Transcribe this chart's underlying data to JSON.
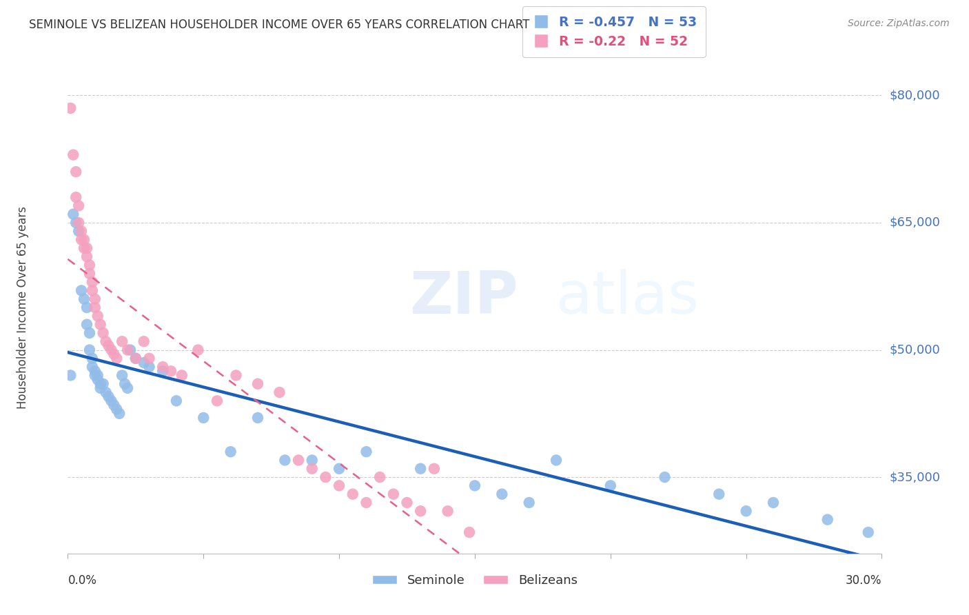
{
  "title": "SEMINOLE VS BELIZEAN HOUSEHOLDER INCOME OVER 65 YEARS CORRELATION CHART",
  "source": "Source: ZipAtlas.com",
  "ylabel": "Householder Income Over 65 years",
  "yticks": [
    35000,
    50000,
    65000,
    80000
  ],
  "ytick_labels": [
    "$35,000",
    "$50,000",
    "$65,000",
    "$80,000"
  ],
  "xlim": [
    0.0,
    0.3
  ],
  "ylim": [
    26000,
    84000
  ],
  "seminole_color": "#92bce8",
  "belizean_color": "#f4a0be",
  "seminole_line_color": "#1a5eb8",
  "belizean_line_color": "#e8608a",
  "watermark_text": "ZIPatlas",
  "seminole_R": -0.457,
  "seminole_N": 53,
  "belizean_R": -0.22,
  "belizean_N": 52,
  "seminole_x": [
    0.001,
    0.002,
    0.003,
    0.004,
    0.005,
    0.006,
    0.007,
    0.007,
    0.008,
    0.008,
    0.009,
    0.009,
    0.01,
    0.01,
    0.011,
    0.011,
    0.012,
    0.012,
    0.013,
    0.014,
    0.015,
    0.016,
    0.017,
    0.018,
    0.019,
    0.02,
    0.021,
    0.022,
    0.023,
    0.025,
    0.028,
    0.03,
    0.035,
    0.04,
    0.05,
    0.06,
    0.07,
    0.08,
    0.09,
    0.1,
    0.11,
    0.13,
    0.15,
    0.16,
    0.17,
    0.18,
    0.2,
    0.22,
    0.24,
    0.25,
    0.26,
    0.28,
    0.295
  ],
  "seminole_y": [
    47000,
    66000,
    65000,
    64000,
    57000,
    56000,
    55000,
    53000,
    52000,
    50000,
    49000,
    48000,
    47500,
    47000,
    47000,
    46500,
    46000,
    45500,
    46000,
    45000,
    44500,
    44000,
    43500,
    43000,
    42500,
    47000,
    46000,
    45500,
    50000,
    49000,
    48500,
    48000,
    47500,
    44000,
    42000,
    38000,
    42000,
    37000,
    37000,
    36000,
    38000,
    36000,
    34000,
    33000,
    32000,
    37000,
    34000,
    35000,
    33000,
    31000,
    32000,
    30000,
    28500
  ],
  "belizean_x": [
    0.001,
    0.002,
    0.003,
    0.003,
    0.004,
    0.004,
    0.005,
    0.005,
    0.006,
    0.006,
    0.007,
    0.007,
    0.008,
    0.008,
    0.009,
    0.009,
    0.01,
    0.01,
    0.011,
    0.012,
    0.013,
    0.014,
    0.015,
    0.016,
    0.017,
    0.018,
    0.02,
    0.022,
    0.025,
    0.028,
    0.03,
    0.035,
    0.038,
    0.042,
    0.048,
    0.055,
    0.062,
    0.07,
    0.078,
    0.085,
    0.09,
    0.095,
    0.1,
    0.105,
    0.11,
    0.115,
    0.12,
    0.125,
    0.13,
    0.135,
    0.14,
    0.148
  ],
  "belizean_y": [
    78500,
    73000,
    71000,
    68000,
    67000,
    65000,
    64000,
    63000,
    63000,
    62000,
    62000,
    61000,
    60000,
    59000,
    58000,
    57000,
    56000,
    55000,
    54000,
    53000,
    52000,
    51000,
    50500,
    50000,
    49500,
    49000,
    51000,
    50000,
    49000,
    51000,
    49000,
    48000,
    47500,
    47000,
    50000,
    44000,
    47000,
    46000,
    45000,
    37000,
    36000,
    35000,
    34000,
    33000,
    32000,
    35000,
    33000,
    32000,
    31000,
    36000,
    31000,
    28500
  ]
}
